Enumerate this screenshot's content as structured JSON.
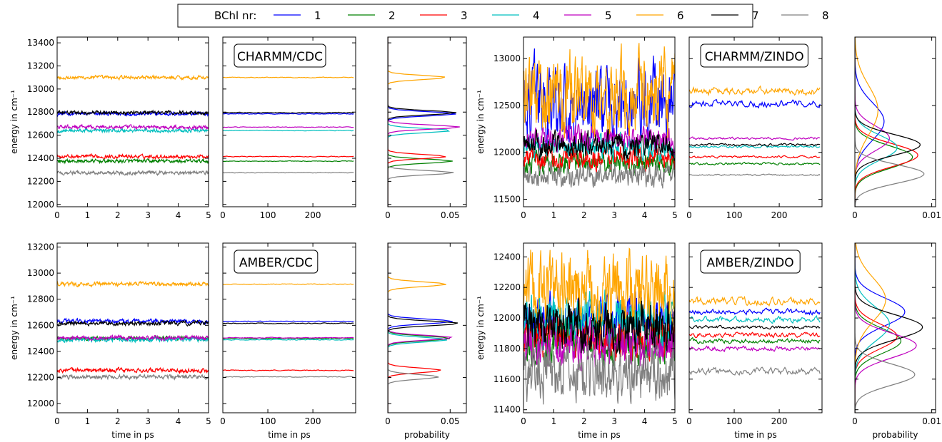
{
  "colors": {
    "1": "#0000ff",
    "2": "#008000",
    "3": "#ff0000",
    "4": "#00bfbf",
    "5": "#bf00bf",
    "6": "#ffa500",
    "7": "#000000",
    "8": "#808080"
  },
  "legend": {
    "title": "BChl nr:",
    "entries": [
      "1",
      "2",
      "3",
      "4",
      "5",
      "6",
      "7",
      "8"
    ]
  },
  "labels": {
    "energy": "energy in cm⁻¹",
    "time_ps": "time in ps",
    "probability": "probability"
  },
  "chart_data": [
    {
      "type": "line",
      "group": "CHARMM/CDC",
      "kind": "time",
      "xlabel": "",
      "ylabel": "energy in cm⁻¹",
      "xlim": [
        0,
        5
      ],
      "xticks": [
        "0",
        "1",
        "2",
        "3",
        "4",
        "5"
      ],
      "ylim": [
        11980,
        13450
      ],
      "yticks": [
        "12000",
        "12200",
        "12400",
        "12600",
        "12800",
        "13000",
        "13200",
        "13400"
      ],
      "series": [
        {
          "name": "1",
          "mean": 12785,
          "fluct": 15
        },
        {
          "name": "2",
          "mean": 12375,
          "fluct": 15
        },
        {
          "name": "3",
          "mean": 12415,
          "fluct": 15
        },
        {
          "name": "4",
          "mean": 12640,
          "fluct": 15
        },
        {
          "name": "5",
          "mean": 12670,
          "fluct": 15
        },
        {
          "name": "6",
          "mean": 13100,
          "fluct": 15
        },
        {
          "name": "7",
          "mean": 12795,
          "fluct": 15
        },
        {
          "name": "8",
          "mean": 12275,
          "fluct": 15
        }
      ]
    },
    {
      "type": "line",
      "group": "CHARMM/CDC",
      "kind": "running",
      "label": "CHARMM/CDC",
      "xlim": [
        0,
        295
      ],
      "xticks": [
        "0",
        "100",
        "200"
      ],
      "ylim": [
        11980,
        13450
      ],
      "series": [
        {
          "name": "1",
          "mean": 12785,
          "fluct": 3
        },
        {
          "name": "2",
          "mean": 12375,
          "fluct": 3
        },
        {
          "name": "3",
          "mean": 12415,
          "fluct": 3
        },
        {
          "name": "4",
          "mean": 12640,
          "fluct": 3
        },
        {
          "name": "5",
          "mean": 12670,
          "fluct": 3
        },
        {
          "name": "6",
          "mean": 13100,
          "fluct": 3
        },
        {
          "name": "7",
          "mean": 12795,
          "fluct": 3
        },
        {
          "name": "8",
          "mean": 12275,
          "fluct": 3
        }
      ]
    },
    {
      "type": "line",
      "group": "CHARMM/CDC",
      "kind": "histogram",
      "xlim": [
        0,
        0.063
      ],
      "xticks": [
        "0",
        "0.05"
      ],
      "ylim": [
        11980,
        13450
      ],
      "series": [
        {
          "name": "1",
          "mean": 12785,
          "width": 18,
          "peak": 0.055
        },
        {
          "name": "2",
          "mean": 12375,
          "width": 18,
          "peak": 0.052
        },
        {
          "name": "3",
          "mean": 12415,
          "width": 18,
          "peak": 0.047
        },
        {
          "name": "4",
          "mean": 12640,
          "width": 18,
          "peak": 0.051
        },
        {
          "name": "5",
          "mean": 12670,
          "width": 18,
          "peak": 0.058
        },
        {
          "name": "6",
          "mean": 13100,
          "width": 18,
          "peak": 0.047
        },
        {
          "name": "7",
          "mean": 12795,
          "width": 18,
          "peak": 0.055
        },
        {
          "name": "8",
          "mean": 12275,
          "width": 18,
          "peak": 0.053
        }
      ]
    },
    {
      "type": "line",
      "group": "CHARMM/ZINDO",
      "kind": "time",
      "xlabel": "",
      "ylabel": "energy in cm⁻¹",
      "xlim": [
        0,
        5
      ],
      "xticks": [
        "0",
        "1",
        "2",
        "3",
        "4",
        "5"
      ],
      "ylim": [
        11420,
        13230
      ],
      "yticks": [
        "11500",
        "12000",
        "12500",
        "13000"
      ],
      "series": [
        {
          "name": "1",
          "mean": 12520,
          "fluct": 380
        },
        {
          "name": "2",
          "mean": 11880,
          "fluct": 120
        },
        {
          "name": "3",
          "mean": 11950,
          "fluct": 120
        },
        {
          "name": "4",
          "mean": 12060,
          "fluct": 120
        },
        {
          "name": "5",
          "mean": 12150,
          "fluct": 120
        },
        {
          "name": "6",
          "mean": 12620,
          "fluct": 400
        },
        {
          "name": "7",
          "mean": 12080,
          "fluct": 120
        },
        {
          "name": "8",
          "mean": 11760,
          "fluct": 120
        }
      ]
    },
    {
      "type": "line",
      "group": "CHARMM/ZINDO",
      "kind": "running",
      "label": "CHARMM/ZINDO",
      "xlim": [
        0,
        295
      ],
      "xticks": [
        "0",
        "100",
        "200"
      ],
      "ylim": [
        11420,
        13230
      ],
      "series": [
        {
          "name": "1",
          "mean": 12520,
          "fluct": 35
        },
        {
          "name": "2",
          "mean": 11880,
          "fluct": 12
        },
        {
          "name": "3",
          "mean": 11950,
          "fluct": 12
        },
        {
          "name": "4",
          "mean": 12060,
          "fluct": 12
        },
        {
          "name": "5",
          "mean": 12150,
          "fluct": 12
        },
        {
          "name": "6",
          "mean": 12650,
          "fluct": 40
        },
        {
          "name": "7",
          "mean": 12080,
          "fluct": 12
        },
        {
          "name": "8",
          "mean": 11760,
          "fluct": 8
        }
      ]
    },
    {
      "type": "line",
      "group": "CHARMM/ZINDO",
      "kind": "histogram",
      "xlim": [
        0,
        0.0105
      ],
      "xticks": [
        "0",
        "0.01"
      ],
      "ylim": [
        11420,
        13230
      ],
      "series": [
        {
          "name": "1",
          "mean": 12330,
          "width": 200,
          "peak": 0.0038
        },
        {
          "name": "2",
          "mean": 11950,
          "width": 120,
          "peak": 0.0075
        },
        {
          "name": "3",
          "mean": 11970,
          "width": 120,
          "peak": 0.0082
        },
        {
          "name": "4",
          "mean": 12050,
          "width": 130,
          "peak": 0.0055
        },
        {
          "name": "5",
          "mean": 12150,
          "width": 130,
          "peak": 0.0045
        },
        {
          "name": "6",
          "mean": 12450,
          "width": 260,
          "peak": 0.003
        },
        {
          "name": "7",
          "mean": 12080,
          "width": 110,
          "peak": 0.0085
        },
        {
          "name": "8",
          "mean": 11770,
          "width": 100,
          "peak": 0.009
        }
      ]
    },
    {
      "type": "line",
      "group": "AMBER/CDC",
      "kind": "time",
      "xlabel": "time in ps",
      "ylabel": "energy in cm⁻¹",
      "xlim": [
        0,
        5
      ],
      "xticks": [
        "0",
        "1",
        "2",
        "3",
        "4",
        "5"
      ],
      "ylim": [
        11930,
        13230
      ],
      "yticks": [
        "12000",
        "12200",
        "12400",
        "12600",
        "12800",
        "13000",
        "13200"
      ],
      "series": [
        {
          "name": "1",
          "mean": 12630,
          "fluct": 15
        },
        {
          "name": "2",
          "mean": 12500,
          "fluct": 15
        },
        {
          "name": "3",
          "mean": 12255,
          "fluct": 15
        },
        {
          "name": "4",
          "mean": 12490,
          "fluct": 15
        },
        {
          "name": "5",
          "mean": 12505,
          "fluct": 15
        },
        {
          "name": "6",
          "mean": 12915,
          "fluct": 15
        },
        {
          "name": "7",
          "mean": 12615,
          "fluct": 15
        },
        {
          "name": "8",
          "mean": 12205,
          "fluct": 15
        }
      ]
    },
    {
      "type": "line",
      "group": "AMBER/CDC",
      "kind": "running",
      "label": "AMBER/CDC",
      "xlabel": "time in ps",
      "xlim": [
        0,
        295
      ],
      "xticks": [
        "0",
        "100",
        "200"
      ],
      "ylim": [
        11930,
        13230
      ],
      "series": [
        {
          "name": "1",
          "mean": 12630,
          "fluct": 3
        },
        {
          "name": "2",
          "mean": 12500,
          "fluct": 3
        },
        {
          "name": "3",
          "mean": 12255,
          "fluct": 3
        },
        {
          "name": "4",
          "mean": 12490,
          "fluct": 3
        },
        {
          "name": "5",
          "mean": 12505,
          "fluct": 3
        },
        {
          "name": "6",
          "mean": 12915,
          "fluct": 3
        },
        {
          "name": "7",
          "mean": 12615,
          "fluct": 3
        },
        {
          "name": "8",
          "mean": 12205,
          "fluct": 3
        }
      ]
    },
    {
      "type": "line",
      "group": "AMBER/CDC",
      "kind": "histogram",
      "xlabel": "probability",
      "xlim": [
        0,
        0.063
      ],
      "xticks": [
        "0",
        "0.05"
      ],
      "ylim": [
        11930,
        13230
      ],
      "series": [
        {
          "name": "1",
          "mean": 12630,
          "width": 18,
          "peak": 0.052
        },
        {
          "name": "2",
          "mean": 12500,
          "width": 18,
          "peak": 0.05
        },
        {
          "name": "3",
          "mean": 12255,
          "width": 18,
          "peak": 0.043
        },
        {
          "name": "4",
          "mean": 12490,
          "width": 18,
          "peak": 0.048
        },
        {
          "name": "5",
          "mean": 12505,
          "width": 18,
          "peak": 0.052
        },
        {
          "name": "6",
          "mean": 12915,
          "width": 18,
          "peak": 0.047
        },
        {
          "name": "7",
          "mean": 12615,
          "width": 18,
          "peak": 0.057
        },
        {
          "name": "8",
          "mean": 12205,
          "width": 18,
          "peak": 0.041
        }
      ]
    },
    {
      "type": "line",
      "group": "AMBER/ZINDO",
      "kind": "time",
      "xlabel": "time in ps",
      "ylabel": "energy in cm⁻¹",
      "xlim": [
        0,
        5
      ],
      "xticks": [
        "0",
        "1",
        "2",
        "3",
        "4",
        "5"
      ],
      "ylim": [
        11380,
        12490
      ],
      "yticks": [
        "11400",
        "11600",
        "11800",
        "12000",
        "12200",
        "12400"
      ],
      "series": [
        {
          "name": "1",
          "mean": 12000,
          "fluct": 150
        },
        {
          "name": "2",
          "mean": 11860,
          "fluct": 140
        },
        {
          "name": "3",
          "mean": 11890,
          "fluct": 140
        },
        {
          "name": "4",
          "mean": 11980,
          "fluct": 160
        },
        {
          "name": "5",
          "mean": 11810,
          "fluct": 140
        },
        {
          "name": "6",
          "mean": 12180,
          "fluct": 220
        },
        {
          "name": "7",
          "mean": 11950,
          "fluct": 150
        },
        {
          "name": "8",
          "mean": 11650,
          "fluct": 180
        }
      ]
    },
    {
      "type": "line",
      "group": "AMBER/ZINDO",
      "kind": "running",
      "label": "AMBER/ZINDO",
      "xlabel": "time in ps",
      "xlim": [
        0,
        295
      ],
      "xticks": [
        "0",
        "100",
        "200"
      ],
      "ylim": [
        11380,
        12490
      ],
      "series": [
        {
          "name": "1",
          "mean": 12040,
          "fluct": 18
        },
        {
          "name": "2",
          "mean": 11850,
          "fluct": 15
        },
        {
          "name": "3",
          "mean": 11890,
          "fluct": 15
        },
        {
          "name": "4",
          "mean": 11990,
          "fluct": 18
        },
        {
          "name": "5",
          "mean": 11800,
          "fluct": 15
        },
        {
          "name": "6",
          "mean": 12110,
          "fluct": 25
        },
        {
          "name": "7",
          "mean": 11940,
          "fluct": 10
        },
        {
          "name": "8",
          "mean": 11650,
          "fluct": 22
        }
      ]
    },
    {
      "type": "line",
      "group": "AMBER/ZINDO",
      "kind": "histogram",
      "xlabel": "probability",
      "xlim": [
        0,
        0.0105
      ],
      "xticks": [
        "0",
        "0.01"
      ],
      "ylim": [
        11380,
        12490
      ],
      "series": [
        {
          "name": "1",
          "mean": 12040,
          "width": 90,
          "peak": 0.0065
        },
        {
          "name": "2",
          "mean": 11850,
          "width": 80,
          "peak": 0.006
        },
        {
          "name": "3",
          "mean": 11880,
          "width": 80,
          "peak": 0.0055
        },
        {
          "name": "4",
          "mean": 11960,
          "width": 110,
          "peak": 0.0045
        },
        {
          "name": "5",
          "mean": 11820,
          "width": 80,
          "peak": 0.008
        },
        {
          "name": "6",
          "mean": 12120,
          "width": 140,
          "peak": 0.004
        },
        {
          "name": "7",
          "mean": 11940,
          "width": 80,
          "peak": 0.0088
        },
        {
          "name": "8",
          "mean": 11630,
          "width": 70,
          "peak": 0.0078
        }
      ]
    }
  ]
}
